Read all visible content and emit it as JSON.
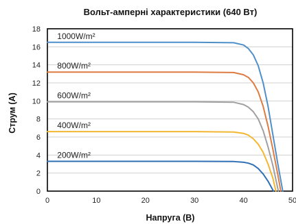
{
  "chart_data": {
    "type": "line",
    "title": "Вольт-амперні характеристики (640 Вт)",
    "xlabel": "Напруга (В)",
    "ylabel": "Струм (А)",
    "xlim": [
      0,
      50
    ],
    "ylim": [
      0,
      18
    ],
    "xticks": [
      "0",
      "10",
      "20",
      "30",
      "40",
      "50"
    ],
    "yticks": [
      "0",
      "2",
      "4",
      "6",
      "8",
      "10",
      "12",
      "14",
      "16",
      "18"
    ],
    "grid": "horizontal",
    "series": [
      {
        "name": "1000W/m²",
        "color": "#4f8fc9",
        "isc": 16.5,
        "voc": 48.0,
        "x": [
          0,
          10,
          20,
          30,
          38,
          40,
          41,
          42,
          43,
          44,
          45,
          46,
          47,
          48
        ],
        "y": [
          16.5,
          16.5,
          16.5,
          16.5,
          16.45,
          16.2,
          15.8,
          15.1,
          13.9,
          12.0,
          9.4,
          6.2,
          3.0,
          0
        ]
      },
      {
        "name": "800W/m²",
        "color": "#de7b40",
        "isc": 13.2,
        "voc": 47.6,
        "x": [
          0,
          10,
          20,
          30,
          38,
          40,
          41,
          42,
          43,
          44,
          45,
          46,
          47,
          47.6
        ],
        "y": [
          13.2,
          13.2,
          13.2,
          13.2,
          13.15,
          12.9,
          12.6,
          12.0,
          11.0,
          9.4,
          7.2,
          4.6,
          1.8,
          0
        ]
      },
      {
        "name": "600W/m²",
        "color": "#a0a0a0",
        "isc": 9.9,
        "voc": 47.1,
        "x": [
          0,
          10,
          20,
          30,
          38,
          40,
          41,
          42,
          43,
          44,
          45,
          46,
          47.1
        ],
        "y": [
          9.9,
          9.9,
          9.9,
          9.9,
          9.85,
          9.6,
          9.3,
          8.8,
          8.0,
          6.7,
          4.9,
          2.8,
          0
        ]
      },
      {
        "name": "400W/m²",
        "color": "#f2b630",
        "isc": 6.6,
        "voc": 46.6,
        "x": [
          0,
          10,
          20,
          30,
          38,
          40,
          41,
          42,
          43,
          44,
          45,
          46,
          46.6
        ],
        "y": [
          6.6,
          6.6,
          6.6,
          6.6,
          6.55,
          6.4,
          6.2,
          5.8,
          5.2,
          4.3,
          3.0,
          1.4,
          0
        ]
      },
      {
        "name": "200W/m²",
        "color": "#2e6fb5",
        "isc": 3.3,
        "voc": 46.1,
        "x": [
          0,
          10,
          20,
          30,
          38,
          40,
          41,
          42,
          43,
          44,
          45,
          46.1
        ],
        "y": [
          3.3,
          3.3,
          3.3,
          3.3,
          3.28,
          3.2,
          3.1,
          2.9,
          2.5,
          1.9,
          1.1,
          0
        ]
      }
    ]
  }
}
